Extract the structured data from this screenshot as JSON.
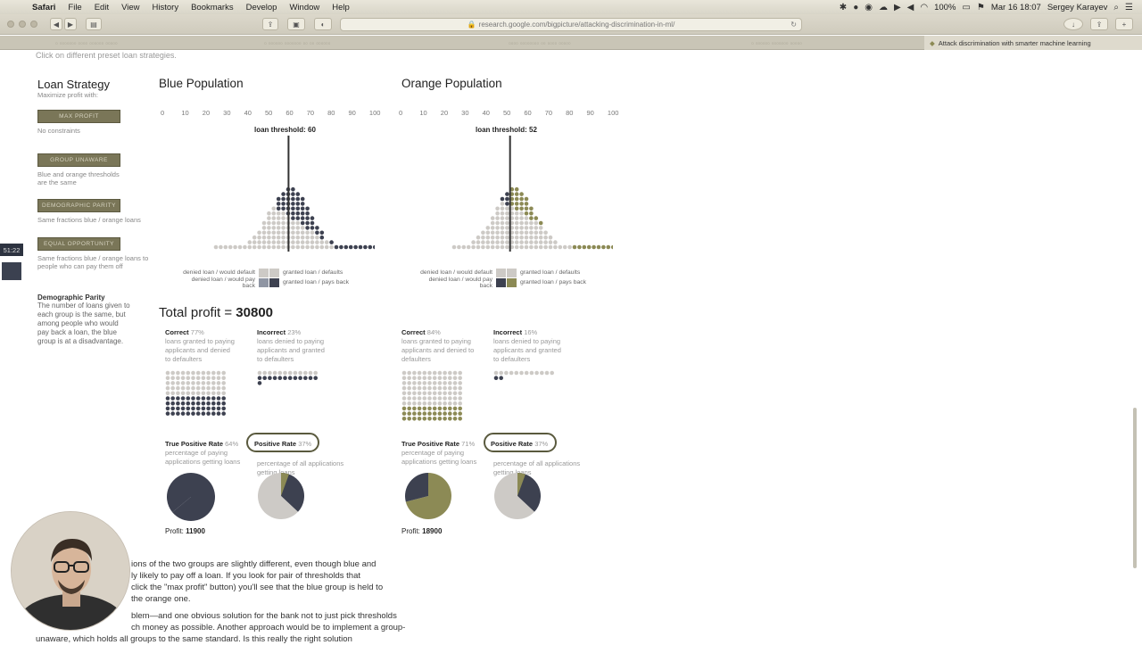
{
  "menubar": {
    "app": "Safari",
    "items": [
      "File",
      "Edit",
      "View",
      "History",
      "Bookmarks",
      "Develop",
      "Window",
      "Help"
    ],
    "battery": "100%",
    "datetime": "Mar 16  18:07",
    "user": "Sergey Karayev"
  },
  "browser": {
    "url": "research.google.com/bigpicture/attacking-discrimination-in-ml/",
    "active_tab": "Attack discrimination with smarter machine learning"
  },
  "page": {
    "intro": "Click on different preset loan strategies.",
    "sidebar": {
      "title": "Loan Strategy",
      "subtitle": "Maximize profit with:",
      "buttons": [
        {
          "label": "MAX PROFIT",
          "desc": "No constraints"
        },
        {
          "label": "GROUP UNAWARE",
          "desc": "Blue and orange thresholds are the same"
        },
        {
          "label": "DEMOGRAPHIC PARITY",
          "desc": "Same fractions blue / orange loans"
        },
        {
          "label": "EQUAL OPPORTUNITY",
          "desc": "Same fractions blue / orange loans to people who can pay them off"
        }
      ],
      "note_title": "Demographic Parity",
      "note": "The number of loans given to each group is the same, but among people who would pay back a loan, the blue group is at a disadvantage."
    },
    "axis_ticks": [
      "0",
      "10",
      "20",
      "30",
      "40",
      "50",
      "60",
      "70",
      "80",
      "90",
      "100"
    ],
    "blue": {
      "title": "Blue Population",
      "threshold_label": "loan threshold: 60",
      "threshold": 60,
      "correct_title": "Correct",
      "correct_pct": "77%",
      "correct_desc": "loans granted to paying applicants and denied to defaulters",
      "incorrect_title": "Incorrect",
      "incorrect_pct": "23%",
      "incorrect_desc": "loans denied to paying applicants and granted to defaulters",
      "tpr_title": "True Positive Rate",
      "tpr_pct": "64%",
      "tpr_desc": "percentage of paying applications getting loans",
      "pr_title": "Positive Rate",
      "pr_pct": "37%",
      "pr_desc": "percentage of all applications getting loans",
      "profit_label": "Profit:",
      "profit": "11900",
      "tpr_value": 0.64,
      "pr_value": 0.37
    },
    "orange": {
      "title": "Orange Population",
      "threshold_label": "loan threshold: 52",
      "threshold": 52,
      "correct_title": "Correct",
      "correct_pct": "84%",
      "correct_desc": "loans granted to paying applicants and denied to defaulters",
      "incorrect_title": "Incorrect",
      "incorrect_pct": "16%",
      "incorrect_desc": "loans denied to paying applicants and granted to defaulters",
      "tpr_title": "True Positive Rate",
      "tpr_pct": "71%",
      "tpr_desc": "percentage of paying applications getting loans",
      "pr_title": "Positive Rate",
      "pr_pct": "37%",
      "pr_desc": "percentage of all applications getting loans",
      "profit_label": "Profit:",
      "profit": "18900",
      "tpr_value": 0.71,
      "pr_value": 0.37
    },
    "legend": {
      "denied_default": "denied loan / would default",
      "granted_default": "granted loan / defaults",
      "denied_pay": "denied loan / would pay back",
      "granted_pay": "granted loan / pays back"
    },
    "total_profit_label": "Total profit = ",
    "total_profit": "30800",
    "body_lines_1": [
      "ions of the two groups are slightly different, even though blue and",
      "ly likely to pay off a loan. If you look for pair of thresholds that",
      "click the \"max profit\" button) you'll see that the blue group is held to",
      "the orange one."
    ],
    "body_lines_2": [
      "blem—and one obvious solution for the bank not to just pick thresholds",
      "ch money as possible. Another approach would be to implement a group-",
      "unaware, which holds all groups to the same standard. Is this really the right solution"
    ],
    "timer": "51:22"
  },
  "colors": {
    "dark_dot": "#3d4150",
    "light_dot": "#cdcac6",
    "olive": "#8c8a55",
    "button": "#7a7658"
  }
}
